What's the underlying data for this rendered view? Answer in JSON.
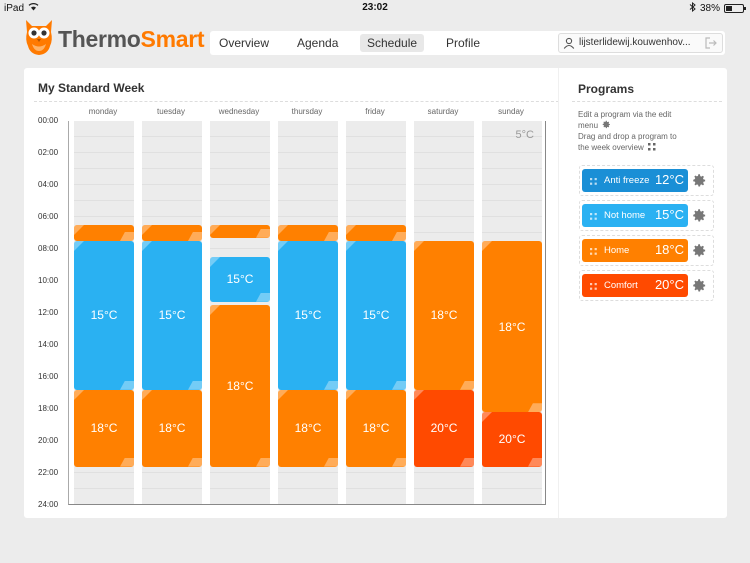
{
  "statusbar": {
    "device": "iPad",
    "time": "23:02",
    "battery": "38%",
    "battery_level": 0.38
  },
  "app": {
    "name_part1": "Thermo",
    "name_part2": "Smart"
  },
  "nav": {
    "tabs": [
      {
        "label": "Overview",
        "active": false
      },
      {
        "label": "Agenda",
        "active": false
      },
      {
        "label": "Schedule",
        "active": true
      },
      {
        "label": "Profile",
        "active": false
      }
    ],
    "user": "lijsterlidewij.kouwenhov..."
  },
  "schedule": {
    "title": "My Standard Week",
    "days": [
      "monday",
      "tuesday",
      "wednesday",
      "thursday",
      "friday",
      "saturday",
      "sunday"
    ],
    "times": [
      "00:00",
      "02:00",
      "04:00",
      "06:00",
      "08:00",
      "10:00",
      "12:00",
      "14:00",
      "16:00",
      "18:00",
      "20:00",
      "22:00",
      "24:00"
    ],
    "default_temp": "5°C",
    "blocks": [
      {
        "day": 0,
        "start": 6.5,
        "end": 7.5,
        "program": "home",
        "label": ""
      },
      {
        "day": 0,
        "start": 7.5,
        "end": 16.8,
        "program": "nothome",
        "label": "15°C"
      },
      {
        "day": 0,
        "start": 16.8,
        "end": 21.6,
        "program": "home",
        "label": "18°C"
      },
      {
        "day": 1,
        "start": 6.5,
        "end": 7.5,
        "program": "home",
        "label": ""
      },
      {
        "day": 1,
        "start": 7.5,
        "end": 16.8,
        "program": "nothome",
        "label": "15°C"
      },
      {
        "day": 1,
        "start": 16.8,
        "end": 21.6,
        "program": "home",
        "label": "18°C"
      },
      {
        "day": 2,
        "start": 6.5,
        "end": 7.3,
        "program": "home",
        "label": ""
      },
      {
        "day": 2,
        "start": 8.5,
        "end": 11.3,
        "program": "nothome",
        "label": "15°C"
      },
      {
        "day": 2,
        "start": 11.5,
        "end": 21.6,
        "program": "home",
        "label": "18°C"
      },
      {
        "day": 3,
        "start": 6.5,
        "end": 7.5,
        "program": "home",
        "label": ""
      },
      {
        "day": 3,
        "start": 7.5,
        "end": 16.8,
        "program": "nothome",
        "label": "15°C"
      },
      {
        "day": 3,
        "start": 16.8,
        "end": 21.6,
        "program": "home",
        "label": "18°C"
      },
      {
        "day": 4,
        "start": 6.5,
        "end": 7.5,
        "program": "home",
        "label": ""
      },
      {
        "day": 4,
        "start": 7.5,
        "end": 16.8,
        "program": "nothome",
        "label": "15°C"
      },
      {
        "day": 4,
        "start": 16.8,
        "end": 21.6,
        "program": "home",
        "label": "18°C"
      },
      {
        "day": 5,
        "start": 7.5,
        "end": 16.8,
        "program": "home",
        "label": "18°C"
      },
      {
        "day": 5,
        "start": 16.8,
        "end": 21.6,
        "program": "comfort",
        "label": "20°C"
      },
      {
        "day": 6,
        "start": 7.5,
        "end": 18.2,
        "program": "home",
        "label": "18°C"
      },
      {
        "day": 6,
        "start": 18.2,
        "end": 21.6,
        "program": "comfort",
        "label": "20°C"
      }
    ]
  },
  "programs": {
    "title": "Programs",
    "help_lines": [
      "Edit a program via the edit",
      "menu",
      "Drag and drop a program to",
      "the week overview"
    ],
    "items": [
      {
        "id": "antifreeze",
        "name": "Anti freeze",
        "temp": "12°C"
      },
      {
        "id": "nothome",
        "name": "Not home",
        "temp": "15°C"
      },
      {
        "id": "home",
        "name": "Home",
        "temp": "18°C"
      },
      {
        "id": "comfort",
        "name": "Comfort",
        "temp": "20°C"
      }
    ]
  },
  "colors": {
    "antifreeze": "#1a8fd6",
    "nothome": "#2ab1f2",
    "home": "#ff8000",
    "comfort": "#ff4a00",
    "accent": "#ff7a00"
  }
}
